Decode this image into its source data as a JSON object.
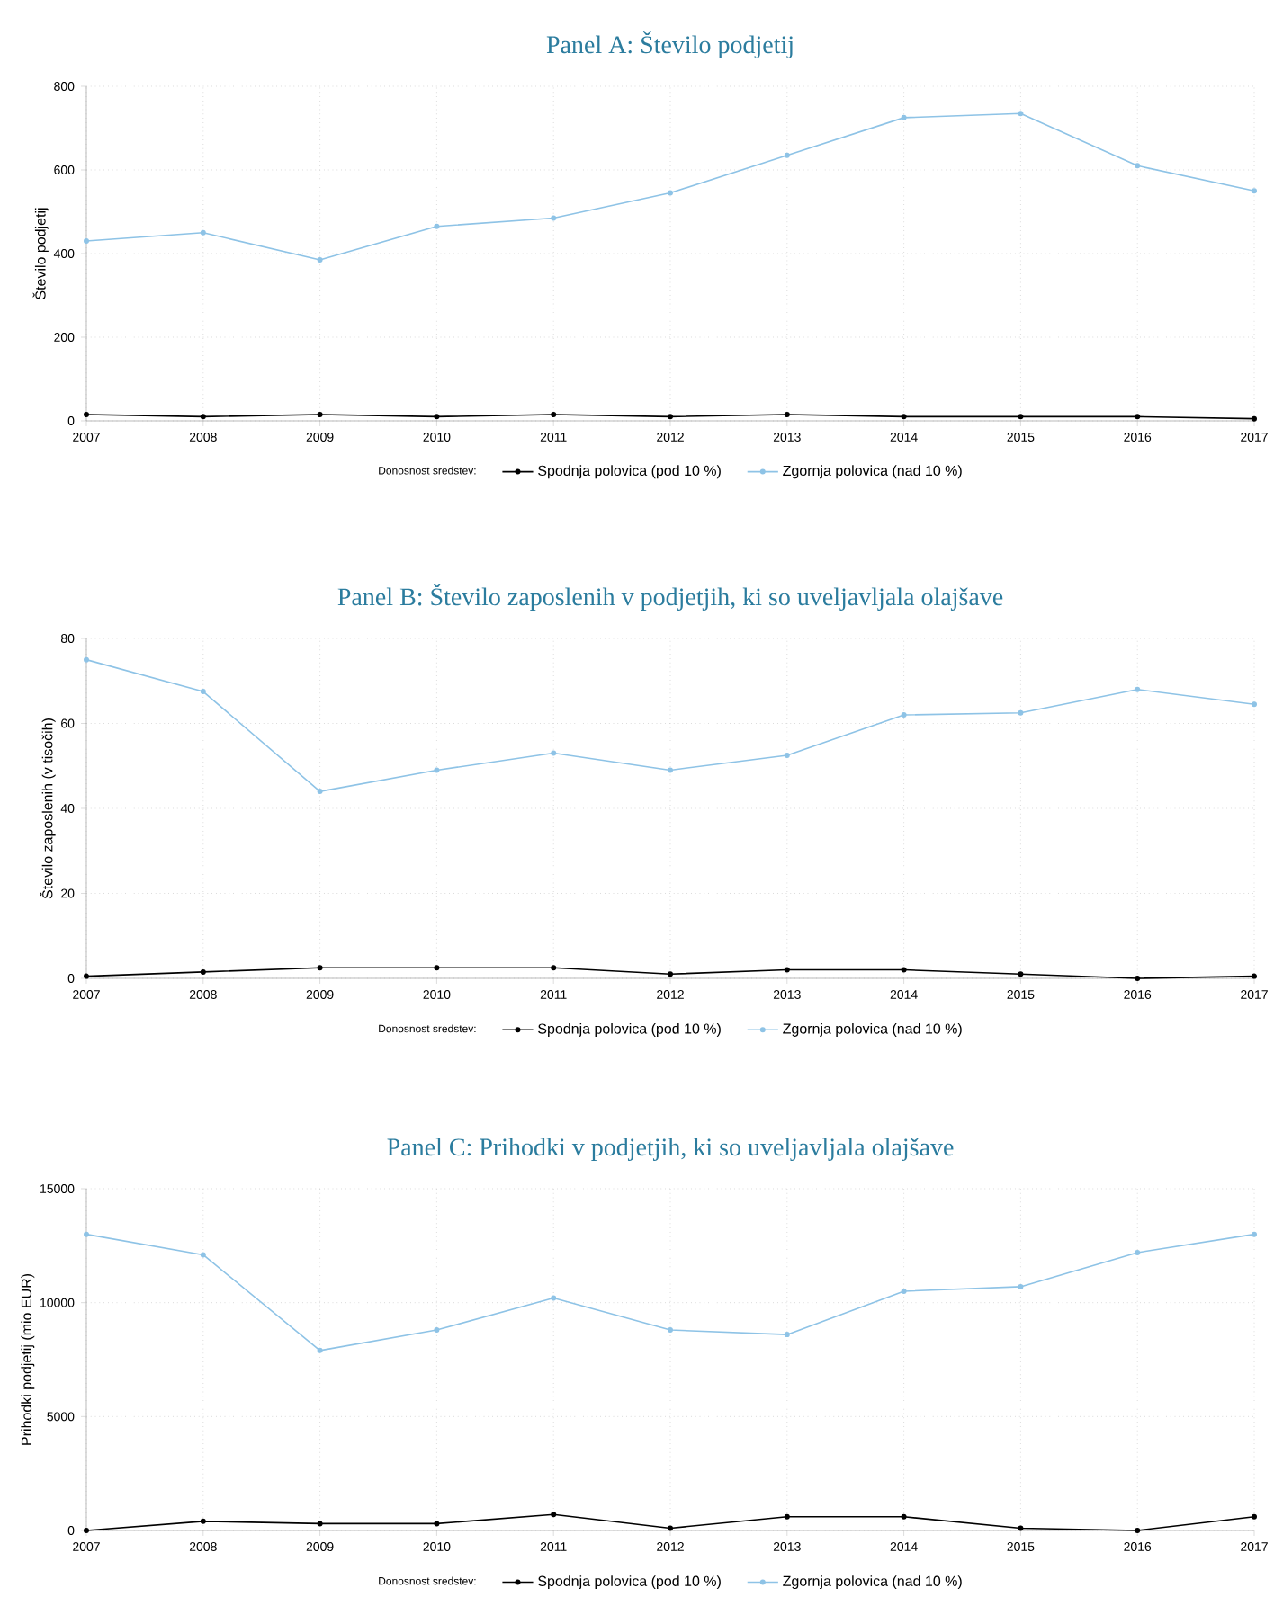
{
  "chart_data": [
    {
      "type": "line",
      "title": "Panel A: Število podjetij",
      "ylabel": "Število podjetij",
      "legend_title": "Donosnost sredstev:",
      "legend": "bottom",
      "grid": true,
      "marker": "circle",
      "line_style": "solid",
      "x": [
        2007,
        2008,
        2009,
        2010,
        2011,
        2012,
        2013,
        2014,
        2015,
        2016,
        2017
      ],
      "xlim": [
        2007,
        2017
      ],
      "xticks": [
        2007,
        2008,
        2009,
        2010,
        2011,
        2012,
        2013,
        2014,
        2015,
        2016,
        2017
      ],
      "ylim": [
        0,
        800
      ],
      "yticks": [
        0,
        200,
        400,
        600,
        800
      ],
      "series": [
        {
          "name": "Spodnja polovica (pod 10 %)",
          "color": "#000000",
          "values": [
            15,
            10,
            15,
            10,
            15,
            10,
            15,
            10,
            10,
            10,
            5
          ]
        },
        {
          "name": "Zgornja polovica (nad 10 %)",
          "color": "#8ec3e6",
          "values": [
            430,
            450,
            385,
            465,
            485,
            545,
            635,
            725,
            735,
            610,
            550
          ]
        }
      ]
    },
    {
      "type": "line",
      "title": "Panel B: Število zaposlenih v podjetjih, ki so uveljavljala olajšave",
      "ylabel": "Število zaposlenih (v tisočih)",
      "legend_title": "Donosnost sredstev:",
      "legend": "bottom",
      "grid": true,
      "marker": "circle",
      "line_style": "solid",
      "x": [
        2007,
        2008,
        2009,
        2010,
        2011,
        2012,
        2013,
        2014,
        2015,
        2016,
        2017
      ],
      "xlim": [
        2007,
        2017
      ],
      "xticks": [
        2007,
        2008,
        2009,
        2010,
        2011,
        2012,
        2013,
        2014,
        2015,
        2016,
        2017
      ],
      "ylim": [
        0,
        80
      ],
      "yticks": [
        0,
        20,
        40,
        60,
        80
      ],
      "series": [
        {
          "name": "Spodnja polovica (pod 10 %)",
          "color": "#000000",
          "values": [
            0.5,
            1.5,
            2.5,
            2.5,
            2.5,
            1,
            2,
            2,
            1,
            0,
            0.5
          ]
        },
        {
          "name": "Zgornja polovica (nad 10 %)",
          "color": "#8ec3e6",
          "values": [
            75,
            67.5,
            44,
            49,
            53,
            49,
            52.5,
            62,
            62.5,
            68,
            64.5
          ]
        }
      ]
    },
    {
      "type": "line",
      "title": "Panel C: Prihodki v podjetjih, ki so uveljavljala olajšave",
      "ylabel": "Prihodki podjetij (mio EUR)",
      "legend_title": "Donosnost sredstev:",
      "legend": "bottom",
      "grid": true,
      "marker": "circle",
      "line_style": "solid",
      "x": [
        2007,
        2008,
        2009,
        2010,
        2011,
        2012,
        2013,
        2014,
        2015,
        2016,
        2017
      ],
      "xlim": [
        2007,
        2017
      ],
      "xticks": [
        2007,
        2008,
        2009,
        2010,
        2011,
        2012,
        2013,
        2014,
        2015,
        2016,
        2017
      ],
      "ylim": [
        0,
        15000
      ],
      "yticks": [
        0,
        5000,
        10000,
        15000
      ],
      "series": [
        {
          "name": "Spodnja polovica (pod 10 %)",
          "color": "#000000",
          "values": [
            0,
            400,
            300,
            300,
            700,
            100,
            600,
            600,
            100,
            0,
            600
          ]
        },
        {
          "name": "Zgornja polovica (nad 10 %)",
          "color": "#8ec3e6",
          "values": [
            13000,
            12100,
            7900,
            8800,
            10200,
            8800,
            8600,
            10500,
            10700,
            12200,
            13000
          ]
        }
      ]
    }
  ]
}
